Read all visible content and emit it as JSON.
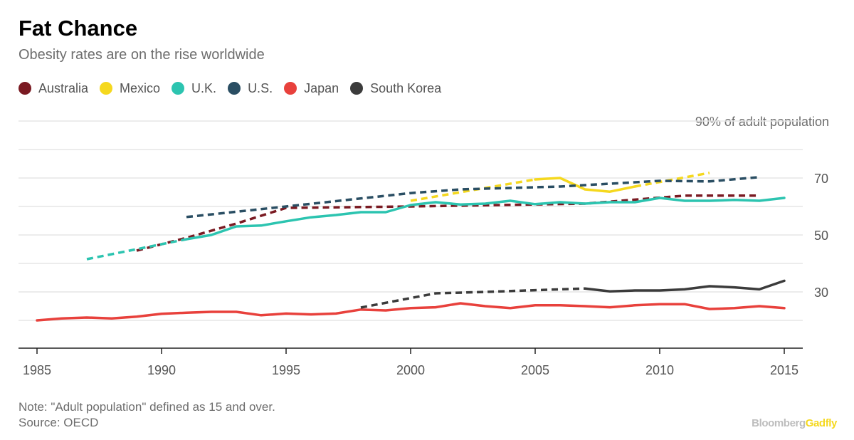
{
  "header": {
    "title": "Fat Chance",
    "subtitle": "Obesity rates are on the rise worldwide"
  },
  "footer": {
    "note": "Note: \"Adult population\" defined as 15 and over.",
    "source": "Source: OECD",
    "brand_part1": "Bloomberg",
    "brand_part2": "Gadfly"
  },
  "chart_data": {
    "type": "line",
    "title": "Fat Chance",
    "subtitle": "Obesity rates are on the rise worldwide",
    "unit_label": "90% of adult population",
    "xlim": [
      1985,
      2015
    ],
    "ylim": [
      10,
      90
    ],
    "x_ticks": [
      "1985",
      "1990",
      "1995",
      "2000",
      "2005",
      "2010",
      "2015"
    ],
    "y_ticks": [
      {
        "value": 70,
        "label": "70"
      },
      {
        "value": 50,
        "label": "50"
      },
      {
        "value": 30,
        "label": "30"
      }
    ],
    "gridlines": [
      20,
      30,
      40,
      50,
      60,
      70,
      80,
      90
    ],
    "grid": true,
    "legend_position": "top-left",
    "series": [
      {
        "name": "Australia",
        "color": "#7a1a22",
        "segments": [
          {
            "style": "dashed",
            "points": [
              [
                1989,
                44.5
              ],
              [
                1991,
                49
              ],
              [
                1993,
                54
              ],
              [
                1995,
                59.5
              ],
              [
                2000,
                60
              ],
              [
                2007,
                61
              ],
              [
                2011,
                63.8
              ],
              [
                2014,
                63.8
              ]
            ]
          }
        ]
      },
      {
        "name": "Mexico",
        "color": "#f5d81e",
        "segments": [
          {
            "style": "dashed",
            "points": [
              [
                2000,
                62
              ],
              [
                2005,
                69.5
              ]
            ]
          },
          {
            "style": "solid",
            "points": [
              [
                2005,
                69.5
              ],
              [
                2006,
                70
              ],
              [
                2007,
                66
              ],
              [
                2008,
                65.2
              ],
              [
                2009,
                67
              ]
            ]
          },
          {
            "style": "dashed",
            "points": [
              [
                2009,
                67
              ],
              [
                2012,
                71.8
              ]
            ]
          }
        ]
      },
      {
        "name": "U.K.",
        "color": "#2cc4b0",
        "segments": [
          {
            "style": "dashed",
            "points": [
              [
                1987,
                41.5
              ],
              [
                1991,
                48.5
              ]
            ]
          },
          {
            "style": "solid",
            "points": [
              [
                1991,
                48.5
              ],
              [
                1992,
                50
              ],
              [
                1993,
                53
              ],
              [
                1994,
                53.3
              ],
              [
                1995,
                54.8
              ],
              [
                1996,
                56.2
              ],
              [
                1997,
                57
              ],
              [
                1998,
                58
              ],
              [
                1999,
                58
              ],
              [
                2000,
                60.5
              ],
              [
                2001,
                61.5
              ],
              [
                2002,
                60.7
              ],
              [
                2003,
                61
              ],
              [
                2004,
                62
              ],
              [
                2005,
                60.8
              ],
              [
                2006,
                61.5
              ],
              [
                2007,
                61
              ],
              [
                2008,
                61.5
              ],
              [
                2009,
                61.5
              ],
              [
                2010,
                63
              ],
              [
                2011,
                62
              ],
              [
                2012,
                62
              ],
              [
                2013,
                62.3
              ],
              [
                2014,
                62
              ],
              [
                2015,
                63
              ]
            ]
          }
        ]
      },
      {
        "name": "U.S.",
        "color": "#2a4e63",
        "segments": [
          {
            "style": "dashed",
            "points": [
              [
                1991,
                56.3
              ],
              [
                1995,
                60
              ],
              [
                2000,
                64.7
              ],
              [
                2002,
                66
              ],
              [
                2006,
                67
              ],
              [
                2010,
                69
              ],
              [
                2012,
                68.8
              ],
              [
                2014,
                70.3
              ]
            ]
          }
        ]
      },
      {
        "name": "Japan",
        "color": "#e8413c",
        "segments": [
          {
            "style": "solid",
            "points": [
              [
                1985,
                20
              ],
              [
                1986,
                20.7
              ],
              [
                1987,
                21
              ],
              [
                1988,
                20.7
              ],
              [
                1989,
                21.3
              ],
              [
                1990,
                22.3
              ],
              [
                1991,
                22.7
              ],
              [
                1992,
                23
              ],
              [
                1993,
                23
              ],
              [
                1994,
                21.8
              ],
              [
                1995,
                22.4
              ],
              [
                1996,
                22.1
              ],
              [
                1997,
                22.4
              ],
              [
                1998,
                23.8
              ],
              [
                1999,
                23.5
              ],
              [
                2000,
                24.3
              ],
              [
                2001,
                24.6
              ],
              [
                2002,
                26
              ],
              [
                2003,
                25
              ],
              [
                2004,
                24.3
              ],
              [
                2005,
                25.3
              ],
              [
                2006,
                25.3
              ],
              [
                2007,
                25
              ],
              [
                2008,
                24.6
              ],
              [
                2009,
                25.3
              ],
              [
                2010,
                25.7
              ],
              [
                2011,
                25.7
              ],
              [
                2012,
                24
              ],
              [
                2013,
                24.3
              ],
              [
                2014,
                25
              ],
              [
                2015,
                24.3
              ]
            ]
          }
        ]
      },
      {
        "name": "South Korea",
        "color": "#3b3b3b",
        "segments": [
          {
            "style": "dashed",
            "points": [
              [
                1998,
                24.5
              ],
              [
                2001,
                29.5
              ],
              [
                2003,
                30
              ],
              [
                2005,
                30.6
              ],
              [
                2007,
                31.2
              ]
            ]
          },
          {
            "style": "solid",
            "points": [
              [
                2007,
                31.2
              ],
              [
                2008,
                30.2
              ],
              [
                2009,
                30.5
              ],
              [
                2010,
                30.5
              ],
              [
                2011,
                30.9
              ],
              [
                2012,
                32
              ],
              [
                2013,
                31.6
              ],
              [
                2014,
                30.9
              ],
              [
                2015,
                33.9
              ]
            ]
          }
        ]
      }
    ]
  }
}
